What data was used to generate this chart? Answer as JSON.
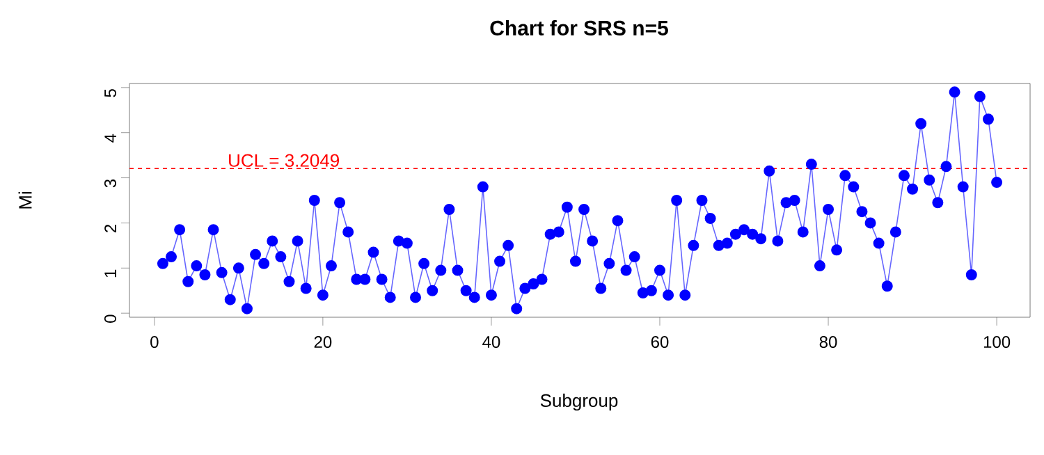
{
  "chart_data": {
    "type": "line",
    "title": "Chart for SRS n=5",
    "xlabel": "Subgroup",
    "ylabel": "Mi",
    "x": [
      1,
      2,
      3,
      4,
      5,
      6,
      7,
      8,
      9,
      10,
      11,
      12,
      13,
      14,
      15,
      16,
      17,
      18,
      19,
      20,
      21,
      22,
      23,
      24,
      25,
      26,
      27,
      28,
      29,
      30,
      31,
      32,
      33,
      34,
      35,
      36,
      37,
      38,
      39,
      40,
      41,
      42,
      43,
      44,
      45,
      46,
      47,
      48,
      49,
      50,
      51,
      52,
      53,
      54,
      55,
      56,
      57,
      58,
      59,
      60,
      61,
      62,
      63,
      64,
      65,
      66,
      67,
      68,
      69,
      70,
      71,
      72,
      73,
      74,
      75,
      76,
      77,
      78,
      79,
      80,
      81,
      82,
      83,
      84,
      85,
      86,
      87,
      88,
      89,
      90,
      91,
      92,
      93,
      94,
      95,
      96,
      97,
      98,
      99,
      100
    ],
    "series": [
      {
        "color": "#0000ff",
        "values": [
          1.1,
          1.25,
          1.85,
          0.7,
          1.05,
          0.85,
          1.85,
          0.9,
          0.3,
          1.0,
          0.1,
          1.3,
          1.1,
          1.6,
          1.25,
          0.7,
          1.6,
          0.55,
          2.5,
          0.4,
          1.05,
          2.45,
          1.8,
          0.75,
          0.75,
          1.35,
          0.75,
          0.35,
          1.6,
          1.55,
          0.35,
          1.1,
          0.5,
          0.95,
          2.3,
          0.95,
          0.5,
          0.35,
          2.8,
          0.4,
          1.15,
          1.5,
          0.1,
          0.55,
          0.65,
          0.75,
          1.75,
          1.8,
          2.35,
          1.15,
          2.3,
          1.6,
          0.55,
          1.1,
          2.05,
          0.95,
          1.25,
          0.45,
          0.5,
          0.95,
          0.4,
          2.5,
          0.4,
          1.5,
          2.5,
          2.1,
          1.5,
          1.55,
          1.75,
          1.85,
          1.75,
          1.65,
          3.15,
          1.6,
          2.45,
          2.5,
          1.8,
          3.3,
          1.05,
          2.3,
          1.4,
          3.05,
          2.8,
          2.25,
          2.0,
          1.55,
          0.6,
          1.8,
          3.05,
          2.75,
          4.2,
          2.95,
          2.45,
          3.25,
          4.9,
          2.8,
          0.85,
          4.8,
          4.3,
          2.9
        ]
      }
    ],
    "xlim": [
      -2.96,
      103.96
    ],
    "ylim": [
      -0.09,
      5.09
    ],
    "xticks": [
      0,
      20,
      40,
      60,
      80,
      100
    ],
    "yticks": [
      0,
      1,
      2,
      3,
      4,
      5
    ],
    "ref_lines": [
      {
        "axis": "y",
        "value": 3.2049,
        "label": "UCL = 3.2049",
        "color": "#ff0000",
        "line_style": "dashed"
      }
    ],
    "grid": false,
    "marker": "circle",
    "line_style": "solid"
  }
}
